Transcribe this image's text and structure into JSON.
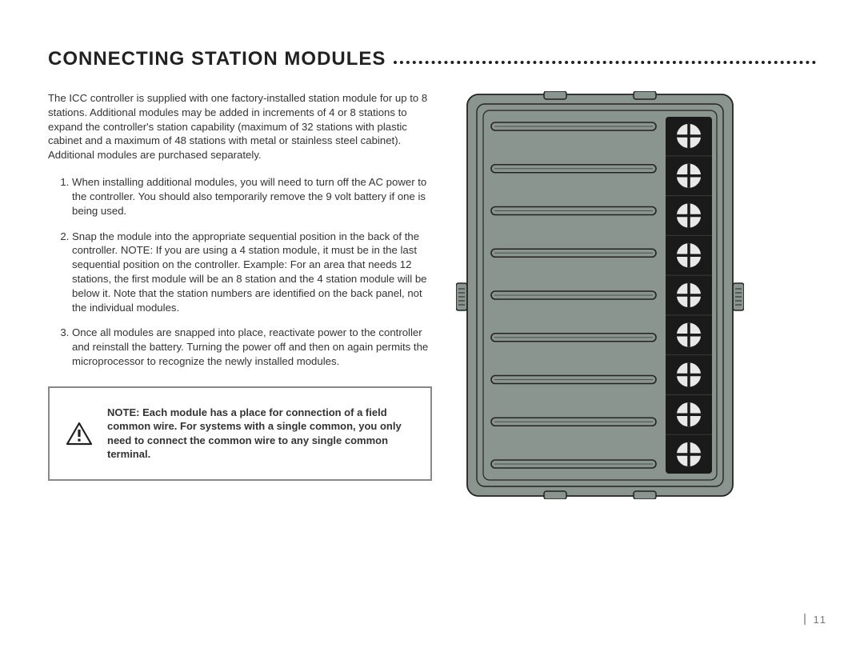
{
  "heading": "CONNECTING STATION MODULES",
  "intro": "The ICC controller is supplied with one factory-installed station module for up to 8 stations. Additional modules may be added in increments of 4 or 8 stations to expand the controller's station capability (maximum of 32 stations with plastic cabinet and a maximum of 48 stations with metal or stainless steel cabinet). Additional modules are purchased separately.",
  "steps": [
    "When installing additional modules, you will need to turn off the AC power to the controller. You should also temporarily remove the 9 volt battery if one is being used.",
    "Snap the module into the appropriate sequential position in the back of the controller. NOTE: If you are using a 4 station module, it must be in the last sequential position on the controller. Example: For an area that needs 12 stations, the first module will be an 8 station and the 4 station module will be below it. Note that the station numbers are identified on the back panel, not the individual modules.",
    "Once all modules are snapped into place, reactivate power to the controller and reinstall the battery. Turning the power off and then on again permits the microprocessor to recognize the newly installed modules."
  ],
  "note_label": "NOTE:",
  "note_body": " Each module has a place for connection of a field common wire. For systems with a single common, you only need to connect the common wire to any single common terminal.",
  "page_number": "11",
  "diagram": {
    "body_fill": "#8b9590",
    "body_stroke": "#232323",
    "stroke_width": 1.6,
    "inner_fill": "#8b9590",
    "terminal_fill": "#1a1a1a",
    "screw_fill": "#e8e8e8",
    "screw_stroke": "#1a1a1a",
    "slot_count": 9,
    "screw_count": 9
  }
}
